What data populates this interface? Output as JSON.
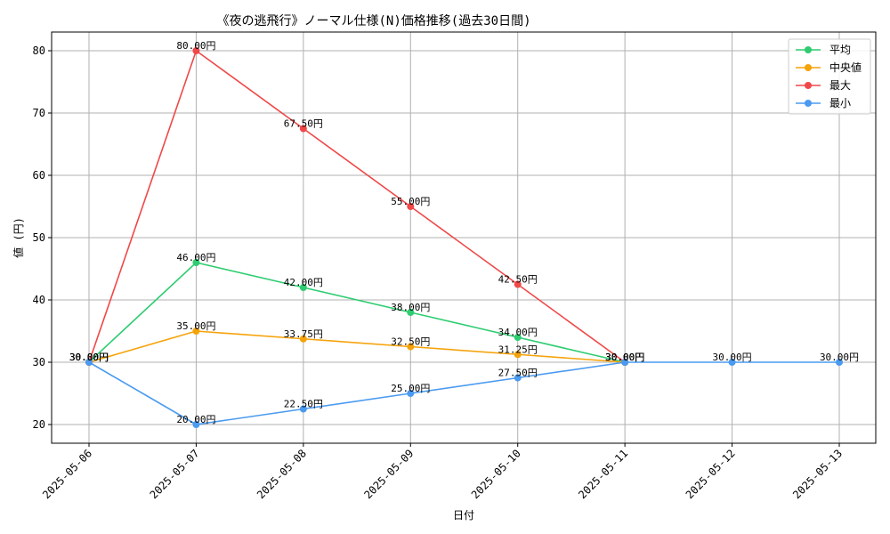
{
  "chart_data": {
    "type": "line",
    "title": "《夜の逃飛行》ノーマル仕様(N)価格推移(過去30日間)",
    "xlabel": "日付",
    "ylabel": "値 (円)",
    "categories": [
      "2025-05-06",
      "2025-05-07",
      "2025-05-08",
      "2025-05-09",
      "2025-05-10",
      "2025-05-11",
      "2025-05-12",
      "2025-05-13"
    ],
    "ylim": [
      17,
      83
    ],
    "yticks": [
      20,
      30,
      40,
      50,
      60,
      70,
      80
    ],
    "grid": true,
    "legend_position": "top-right",
    "series": [
      {
        "name": "平均",
        "color": "#2ecc71",
        "values": [
          30,
          46,
          42,
          38,
          34,
          30,
          null,
          null
        ],
        "labels": [
          "30.00円",
          "46.00円",
          "42.00円",
          "38.00円",
          "34.00円",
          "30.00円",
          null,
          null
        ]
      },
      {
        "name": "中央値",
        "color": "#f5a30a",
        "values": [
          30,
          35,
          33.75,
          32.5,
          31.25,
          30,
          null,
          null
        ],
        "labels": [
          "30.00円",
          "35.00円",
          "33.75円",
          "32.50円",
          "31.25円",
          "30.00円",
          null,
          null
        ]
      },
      {
        "name": "最大",
        "color": "#f04848",
        "values": [
          30,
          80,
          67.5,
          55,
          42.5,
          30,
          null,
          null
        ],
        "labels": [
          "30.00円",
          "80.00円",
          "67.50円",
          "55.00円",
          "42.50円",
          "30.00円",
          null,
          null
        ]
      },
      {
        "name": "最小",
        "color": "#4a9af0",
        "values": [
          30,
          20,
          22.5,
          25,
          27.5,
          30,
          30,
          30
        ],
        "labels": [
          "30.00円",
          "20.00円",
          "22.50円",
          "25.00円",
          "27.50円",
          "30.00円",
          "30.00円",
          "30.00円"
        ]
      }
    ]
  }
}
